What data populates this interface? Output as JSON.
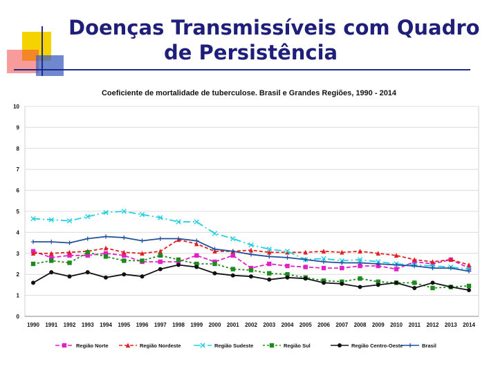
{
  "slide": {
    "title_line1": "Doenças Transmissíveis com Quadro",
    "title_line2": "de Persistência",
    "accent_colors": [
      "#f5d300",
      "#e8242c",
      "#1e2a8a"
    ]
  },
  "chart_data": {
    "type": "line",
    "title": "Coeficiente de mortalidade de tuberculose. Brasil e Grandes Regiões, 1990 - 2014",
    "xlabel": "",
    "ylabel": "",
    "ylim": [
      0,
      10
    ],
    "yticks": [
      "0",
      "1",
      "2",
      "3",
      "4",
      "5",
      "6",
      "7",
      "8",
      "9",
      "10"
    ],
    "grid": true,
    "legend": "bottom",
    "categories": [
      "1990",
      "1991",
      "1992",
      "1993",
      "1994",
      "1995",
      "1996",
      "1997",
      "1998",
      "1999",
      "2000",
      "2001",
      "2002",
      "2003",
      "2004",
      "2005",
      "2006",
      "2007",
      "2008",
      "2009",
      "2010",
      "2011",
      "2012",
      "2013",
      "2014"
    ],
    "series": [
      {
        "name": "Região Norte",
        "color": "#e020c8",
        "marker": "square",
        "dash": "6,3",
        "values": [
          3.1,
          2.8,
          2.9,
          2.9,
          3.0,
          2.9,
          2.6,
          2.6,
          2.6,
          2.9,
          2.6,
          2.9,
          2.3,
          2.5,
          2.4,
          2.35,
          2.3,
          2.3,
          2.4,
          2.4,
          2.25,
          2.6,
          2.5,
          2.7,
          2.3
        ]
      },
      {
        "name": "Região Nordeste",
        "color": "#e02020",
        "marker": "triangle",
        "dash": "5,3",
        "values": [
          3.0,
          3.0,
          3.05,
          3.1,
          3.25,
          3.05,
          3.0,
          3.1,
          3.65,
          3.45,
          3.1,
          3.1,
          3.15,
          3.05,
          3.05,
          3.05,
          3.1,
          3.05,
          3.1,
          3.0,
          2.9,
          2.7,
          2.6,
          2.7,
          2.45
        ]
      },
      {
        "name": "Região Sudeste",
        "color": "#20d0e0",
        "marker": "x",
        "dash": "10,4,2,4",
        "values": [
          4.65,
          4.6,
          4.55,
          4.75,
          4.95,
          5.0,
          4.85,
          4.7,
          4.5,
          4.5,
          3.95,
          3.7,
          3.4,
          3.2,
          3.1,
          2.7,
          2.75,
          2.65,
          2.7,
          2.6,
          2.5,
          2.45,
          2.4,
          2.35,
          2.25
        ]
      },
      {
        "name": "Região Sul",
        "color": "#1e8a1e",
        "marker": "square",
        "dash": "3,3",
        "values": [
          2.5,
          2.65,
          2.55,
          3.05,
          2.85,
          2.65,
          2.65,
          2.9,
          2.7,
          2.5,
          2.5,
          2.25,
          2.2,
          2.05,
          2.0,
          1.85,
          1.7,
          1.65,
          1.8,
          1.65,
          1.6,
          1.6,
          1.35,
          1.4,
          1.45
        ]
      },
      {
        "name": "Região Centro-Oeste",
        "color": "#111111",
        "marker": "circle",
        "dash": "",
        "values": [
          1.6,
          2.1,
          1.9,
          2.1,
          1.85,
          2.0,
          1.9,
          2.25,
          2.45,
          2.35,
          2.05,
          1.95,
          1.9,
          1.75,
          1.85,
          1.8,
          1.6,
          1.55,
          1.4,
          1.5,
          1.6,
          1.35,
          1.6,
          1.4,
          1.25
        ]
      },
      {
        "name": "Brasil",
        "color": "#1f4e9a",
        "marker": "plus",
        "dash": "",
        "values": [
          3.55,
          3.55,
          3.5,
          3.7,
          3.8,
          3.75,
          3.6,
          3.7,
          3.7,
          3.6,
          3.2,
          3.1,
          2.95,
          2.85,
          2.8,
          2.7,
          2.6,
          2.55,
          2.55,
          2.5,
          2.45,
          2.4,
          2.3,
          2.3,
          2.15
        ]
      }
    ]
  }
}
